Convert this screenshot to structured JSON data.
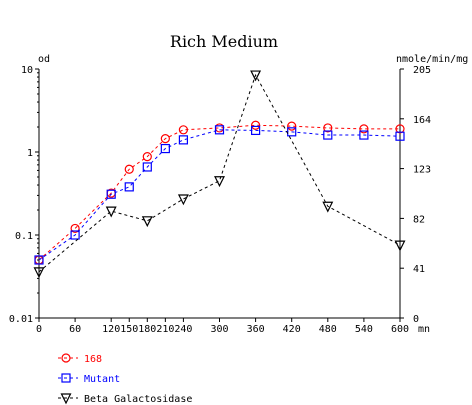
{
  "chart_data": {
    "type": "line",
    "title": "Rich Medium",
    "x_unit": "mn",
    "left_axis_unit": "od",
    "right_axis_unit": "nmole/min/mg",
    "x_ticks": [
      0,
      60,
      120,
      150,
      180,
      210,
      240,
      300,
      360,
      420,
      480,
      540,
      600
    ],
    "x_tick_labels": [
      "0",
      "60",
      "120",
      "150",
      "180",
      "210",
      "240",
      "300",
      "360",
      "420",
      "480",
      "540",
      "600"
    ],
    "xlim": [
      0,
      600
    ],
    "left_scale": "log",
    "left_ylim": [
      0.01,
      10
    ],
    "left_ticks": [
      0.01,
      0.1,
      1,
      10
    ],
    "left_tick_labels": [
      "0.01",
      "0.1",
      "1",
      "10"
    ],
    "right_scale": "linear",
    "right_ylim": [
      0,
      205
    ],
    "right_ticks": [
      0,
      41,
      82,
      123,
      164,
      205
    ],
    "right_tick_labels": [
      "0",
      "41",
      "82",
      "123",
      "164",
      "205"
    ],
    "grid": false,
    "legend_position": "bottom-left",
    "series": [
      {
        "name": "168",
        "axis": "left",
        "color": "#ff0000",
        "marker": "circle",
        "x": [
          0,
          60,
          120,
          150,
          180,
          210,
          240,
          300,
          360,
          420,
          480,
          540,
          600
        ],
        "y": [
          0.05,
          0.12,
          0.32,
          0.62,
          0.88,
          1.45,
          1.85,
          1.95,
          2.1,
          2.05,
          1.95,
          1.9,
          1.9
        ]
      },
      {
        "name": "Mutant",
        "axis": "left",
        "color": "#0000ff",
        "marker": "square",
        "x": [
          0,
          60,
          120,
          150,
          180,
          210,
          240,
          300,
          360,
          420,
          480,
          540,
          600
        ],
        "y": [
          0.05,
          0.1,
          0.31,
          0.38,
          0.66,
          1.1,
          1.4,
          1.85,
          1.82,
          1.75,
          1.6,
          1.6,
          1.55
        ]
      },
      {
        "name": "Beta Galactosidase",
        "axis": "right",
        "color": "#000000",
        "marker": "triangle-down",
        "x": [
          0,
          120,
          180,
          240,
          300,
          360,
          480,
          600
        ],
        "y": [
          38,
          88,
          80,
          98,
          113,
          200,
          92,
          60
        ]
      }
    ]
  }
}
